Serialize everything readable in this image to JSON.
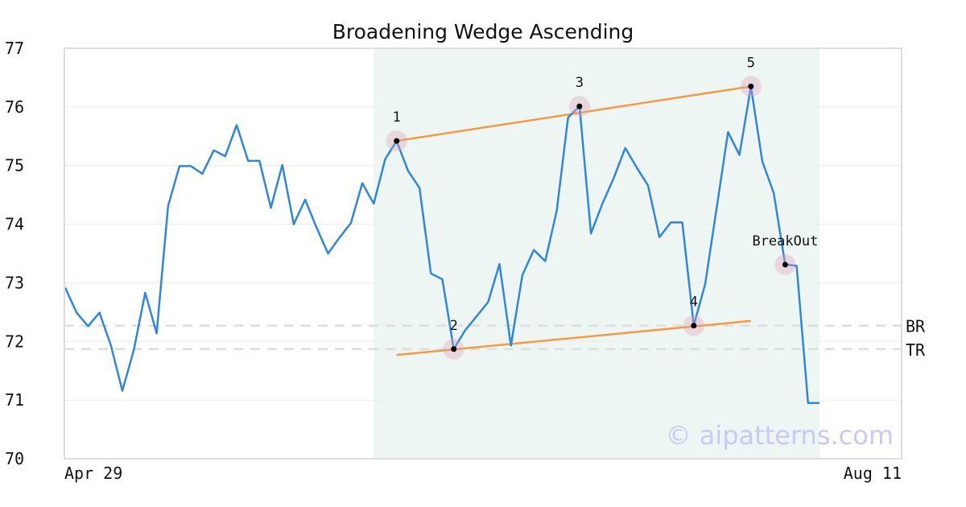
{
  "chart_data": {
    "type": "line",
    "title": "Broadening Wedge Ascending",
    "x_labels": [
      "Apr 29",
      "Aug 11"
    ],
    "ylim": [
      70,
      77
    ],
    "yticks": [
      70,
      71,
      72,
      73,
      74,
      75,
      76,
      77
    ],
    "grid": true,
    "series": [
      {
        "color": "#2e86de",
        "values": [
          72.92,
          72.49,
          72.26,
          72.49,
          71.93,
          71.16,
          71.85,
          72.83,
          72.14,
          74.31,
          74.99,
          74.99,
          74.86,
          75.26,
          75.16,
          75.69,
          75.08,
          75.08,
          74.28,
          75.01,
          74.0,
          74.42,
          73.94,
          73.5,
          73.77,
          74.02,
          74.7,
          74.35,
          75.11,
          75.42,
          74.91,
          74.62,
          73.16,
          73.06,
          71.87,
          72.19,
          72.43,
          72.67,
          73.32,
          71.93,
          73.13,
          73.56,
          73.37,
          74.22,
          75.82,
          76.01,
          73.84,
          74.35,
          74.79,
          75.3,
          74.97,
          74.66,
          73.78,
          74.03,
          74.03,
          72.27,
          72.98,
          74.27,
          75.57,
          75.18,
          76.35,
          75.07,
          74.53,
          73.31,
          73.29,
          70.95,
          70.95
        ]
      }
    ],
    "shaded_region": {
      "start_index": 27,
      "end_index": 66,
      "color": "#eef6f3"
    },
    "pattern_points": [
      {
        "label": "1",
        "index": 29,
        "value": 75.42,
        "label_pos": "above"
      },
      {
        "label": "2",
        "index": 34,
        "value": 71.87,
        "label_pos": "above"
      },
      {
        "label": "3",
        "index": 45,
        "value": 76.01,
        "label_pos": "above"
      },
      {
        "label": "4",
        "index": 55,
        "value": 72.27,
        "label_pos": "above"
      },
      {
        "label": "5",
        "index": 60,
        "value": 76.35,
        "label_pos": "above"
      },
      {
        "label": "BreakOut",
        "index": 63,
        "value": 73.31,
        "label_pos": "above"
      }
    ],
    "trend_lines": [
      {
        "color": "#f59a42",
        "from": {
          "index": 29,
          "value": 75.42
        },
        "to": {
          "index": 60,
          "value": 76.35
        }
      },
      {
        "color": "#f59a42",
        "from": {
          "index": 29,
          "value": 71.77
        },
        "to": {
          "index": 60,
          "value": 72.35
        }
      }
    ],
    "reference_lines": [
      {
        "label": "BR",
        "value": 72.27,
        "color": "#dddddd"
      },
      {
        "label": "TR",
        "value": 71.87,
        "color": "#dddddd"
      }
    ],
    "watermark": "© aipatterns.com"
  }
}
